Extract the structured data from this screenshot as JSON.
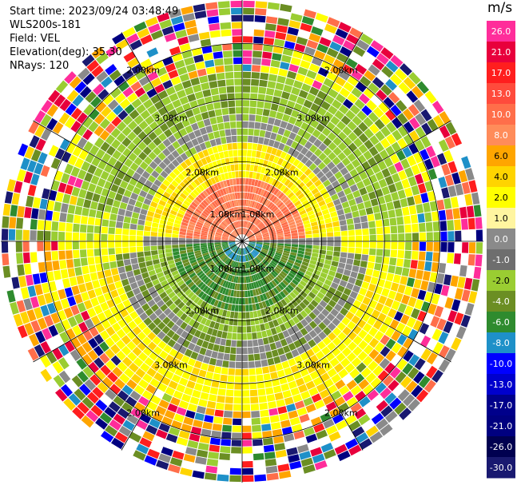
{
  "header": {
    "start_time": "Start time: 2023/09/24 03:48:49",
    "instrument": "WLS200s-181",
    "field": "Field: VEL",
    "elevation": "Elevation(deg): 35.30",
    "nrays": "NRays: 120"
  },
  "chart_data": {
    "type": "heatmap",
    "projection": "polar-ppi",
    "field": "VEL",
    "units": "m/s",
    "range_ring_labels": [
      "1.00km",
      "2.00km",
      "3.00km",
      "2.00km",
      "1.00km"
    ],
    "ring_label_texts": {
      "r1": "1.00km",
      "r2": "2.00km",
      "r3": "3.00km",
      "r4": "2.00km"
    },
    "colorbar": {
      "unit": "m/s",
      "ticks": [
        "26.0",
        "21.0",
        "17.0",
        "13.0",
        "10.0",
        "8.0",
        "6.0",
        "4.0",
        "2.0",
        "1.0",
        "0.0",
        "-1.0",
        "-2.0",
        "-4.0",
        "-6.0",
        "-8.0",
        "-10.0",
        "-13.0",
        "-17.0",
        "-21.0",
        "-26.0",
        "-30.0"
      ],
      "colors": [
        "#ff2d9a",
        "#e8003c",
        "#ff1e1e",
        "#ff4b3c",
        "#ff6e4a",
        "#ff8c5a",
        "#ffa500",
        "#ffd400",
        "#ffff00",
        "#fff5a0",
        "#8a8a8a",
        "#6e6e6e",
        "#9acd32",
        "#6b8e23",
        "#2e8b2e",
        "#1e90c8",
        "#0000ff",
        "#0000cd",
        "#00008b",
        "#000080",
        "#000050",
        "#191970"
      ]
    },
    "rays": 120
  }
}
